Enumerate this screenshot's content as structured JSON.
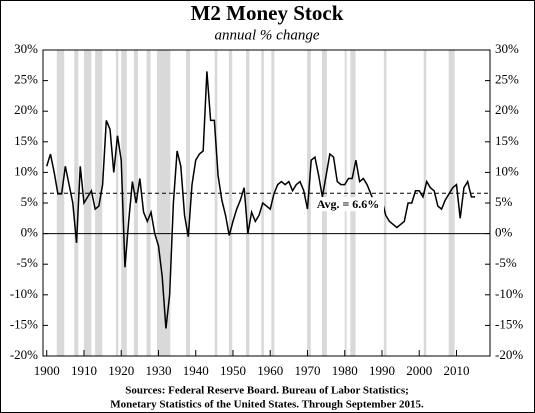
{
  "chart_data": {
    "type": "line",
    "title": "M2 Money Stock",
    "subtitle": "annual % change",
    "sources": [
      "Sources: Federal Reserve Board. Bureau of Labor Statistics;",
      "Monetary Statistics of the United States. Through September 2015."
    ],
    "x": [
      1900,
      1901,
      1902,
      1903,
      1904,
      1905,
      1906,
      1907,
      1908,
      1909,
      1910,
      1911,
      1912,
      1913,
      1914,
      1915,
      1916,
      1917,
      1918,
      1919,
      1920,
      1921,
      1922,
      1923,
      1924,
      1925,
      1926,
      1927,
      1928,
      1929,
      1930,
      1931,
      1932,
      1933,
      1934,
      1935,
      1936,
      1937,
      1938,
      1939,
      1940,
      1941,
      1942,
      1943,
      1944,
      1945,
      1946,
      1947,
      1948,
      1949,
      1950,
      1951,
      1952,
      1953,
      1954,
      1955,
      1956,
      1957,
      1958,
      1959,
      1960,
      1961,
      1962,
      1963,
      1964,
      1965,
      1966,
      1967,
      1968,
      1969,
      1970,
      1971,
      1972,
      1973,
      1974,
      1975,
      1976,
      1977,
      1978,
      1979,
      1980,
      1981,
      1982,
      1983,
      1984,
      1985,
      1986,
      1987,
      1988,
      1989,
      1990,
      1991,
      1992,
      1993,
      1994,
      1995,
      1996,
      1997,
      1998,
      1999,
      2000,
      2001,
      2002,
      2003,
      2004,
      2005,
      2006,
      2007,
      2008,
      2009,
      2010,
      2011,
      2012,
      2013,
      2014,
      2015
    ],
    "series": [
      {
        "name": "M2",
        "color": "#000000",
        "values": [
          11,
          13,
          10,
          6.5,
          6.5,
          11,
          8,
          5,
          -1.5,
          11,
          5,
          6,
          7,
          4,
          4.5,
          8,
          18.5,
          17,
          10,
          16,
          12,
          -5.5,
          2,
          8.5,
          5,
          9,
          3.5,
          2,
          3.5,
          0,
          -2,
          -7,
          -15.5,
          -10,
          5,
          13.5,
          11,
          3,
          -0.5,
          8,
          12,
          13,
          13.5,
          26.5,
          18.5,
          18.5,
          9.5,
          5.5,
          3,
          -0.3,
          2,
          4,
          5.5,
          7.5,
          0,
          3.5,
          2,
          3,
          5,
          4.5,
          4,
          6.5,
          8,
          8.5,
          8,
          8.5,
          7,
          8,
          8.5,
          7,
          4,
          12,
          12.5,
          9.5,
          6,
          9.5,
          13,
          12.5,
          8.5,
          8,
          8,
          9,
          9,
          12,
          8.5,
          9,
          8,
          6.5,
          5,
          4,
          5.5,
          3,
          2,
          1.5,
          1,
          1.5,
          2,
          5,
          5,
          7,
          7,
          6,
          8.5,
          7.5,
          7,
          4.5,
          4,
          5.5,
          6.5,
          7.5,
          8,
          2.5,
          7.5,
          8.5,
          6,
          6
        ]
      }
    ],
    "average": 6.6,
    "average_label": "Avg. = 6.6%",
    "shaded_periods": [
      [
        1902.7,
        1904.7
      ],
      [
        1907.4,
        1908.5
      ],
      [
        1910,
        1912
      ],
      [
        1913,
        1914.9
      ],
      [
        1918.6,
        1919.2
      ],
      [
        1920,
        1921.5
      ],
      [
        1923.4,
        1924.5
      ],
      [
        1926.8,
        1927.9
      ],
      [
        1929.6,
        1933.2
      ],
      [
        1937.4,
        1938.5
      ],
      [
        1945.1,
        1945.8
      ],
      [
        1948.9,
        1949.8
      ],
      [
        1953.5,
        1954.4
      ],
      [
        1957.6,
        1958.3
      ],
      [
        1960.3,
        1961.1
      ],
      [
        1969.9,
        1970.9
      ],
      [
        1973.9,
        1975.2
      ],
      [
        1980,
        1980.5
      ],
      [
        1981.5,
        1982.9
      ],
      [
        1990.5,
        1991.2
      ],
      [
        2001.2,
        2001.9
      ],
      [
        2007.9,
        2009.5
      ]
    ],
    "shade_color": "#d9d9d9",
    "xlim": [
      1899,
      2019
    ],
    "xticks": [
      1900,
      1910,
      1920,
      1930,
      1940,
      1950,
      1960,
      1970,
      1980,
      1990,
      2000,
      2010
    ],
    "ylim": [
      -20,
      30
    ],
    "yticks": [
      {
        "value": -20,
        "label": "-20%"
      },
      {
        "value": -15,
        "label": "-15%"
      },
      {
        "value": -10,
        "label": "-10%"
      },
      {
        "value": -5,
        "label": "-5%"
      },
      {
        "value": 0,
        "label": "0%"
      },
      {
        "value": 5,
        "label": "5%"
      },
      {
        "value": 10,
        "label": "10%"
      },
      {
        "value": 15,
        "label": "15%"
      },
      {
        "value": 20,
        "label": "20%"
      },
      {
        "value": 25,
        "label": "25%"
      },
      {
        "value": 30,
        "label": "30%"
      }
    ]
  }
}
